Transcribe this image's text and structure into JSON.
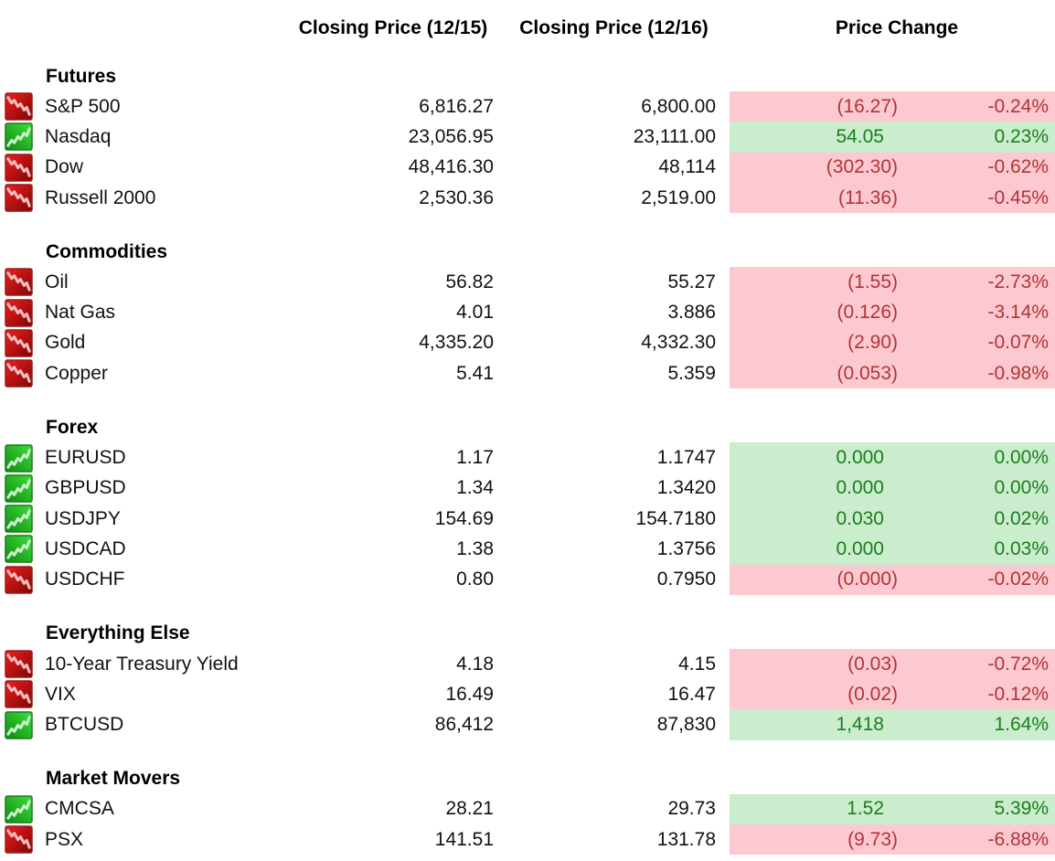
{
  "headers": {
    "closing_1215": "Closing Price (12/15)",
    "closing_1216": "Closing Price (12/16)",
    "price_change": "Price Change"
  },
  "colors": {
    "positive_bg": "#C9EDCD",
    "positive_text": "#1F7D1F",
    "negative_bg": "#FBC9CF",
    "negative_text": "#B23437",
    "icon_down_bright": "#EF1F1F",
    "icon_down_dark": "#7C0505",
    "icon_up_bright": "#3EDE3E",
    "icon_up_dark": "#0F8A0F"
  },
  "sections": [
    {
      "label": "Futures",
      "rows": [
        {
          "symbol": "S&P 500",
          "close_1215": "6,816.27",
          "close_1216": "6,800.00",
          "change": "(16.27)",
          "change_pct": "-0.24%",
          "direction": "down",
          "icon": "down-trend-icon"
        },
        {
          "symbol": "Nasdaq",
          "close_1215": "23,056.95",
          "close_1216": "23,111.00",
          "change": "54.05",
          "change_pct": "0.23%",
          "direction": "up",
          "icon": "up-trend-icon"
        },
        {
          "symbol": "Dow",
          "close_1215": "48,416.30",
          "close_1216": "48,114",
          "change": "(302.30)",
          "change_pct": "-0.62%",
          "direction": "down",
          "icon": "down-trend-icon"
        },
        {
          "symbol": "Russell 2000",
          "close_1215": "2,530.36",
          "close_1216": "2,519.00",
          "change": "(11.36)",
          "change_pct": "-0.45%",
          "direction": "down",
          "icon": "down-trend-icon"
        }
      ]
    },
    {
      "label": "Commodities",
      "rows": [
        {
          "symbol": "Oil",
          "close_1215": "56.82",
          "close_1216": "55.27",
          "change": "(1.55)",
          "change_pct": "-2.73%",
          "direction": "down",
          "icon": "down-trend-icon"
        },
        {
          "symbol": "Nat Gas",
          "close_1215": "4.01",
          "close_1216": "3.886",
          "change": "(0.126)",
          "change_pct": "-3.14%",
          "direction": "down",
          "icon": "down-trend-icon"
        },
        {
          "symbol": "Gold",
          "close_1215": "4,335.20",
          "close_1216": "4,332.30",
          "change": "(2.90)",
          "change_pct": "-0.07%",
          "direction": "down",
          "icon": "down-trend-icon"
        },
        {
          "symbol": "Copper",
          "close_1215": "5.41",
          "close_1216": "5.359",
          "change": "(0.053)",
          "change_pct": "-0.98%",
          "direction": "down",
          "icon": "down-trend-icon"
        }
      ]
    },
    {
      "label": "Forex",
      "rows": [
        {
          "symbol": "EURUSD",
          "close_1215": "1.17",
          "close_1216": "1.1747",
          "change": "0.000",
          "change_pct": "0.00%",
          "direction": "up",
          "icon": "up-trend-icon"
        },
        {
          "symbol": "GBPUSD",
          "close_1215": "1.34",
          "close_1216": "1.3420",
          "change": "0.000",
          "change_pct": "0.00%",
          "direction": "up",
          "icon": "up-trend-icon"
        },
        {
          "symbol": "USDJPY",
          "close_1215": "154.69",
          "close_1216": "154.7180",
          "change": "0.030",
          "change_pct": "0.02%",
          "direction": "up",
          "icon": "up-trend-icon"
        },
        {
          "symbol": "USDCAD",
          "close_1215": "1.38",
          "close_1216": "1.3756",
          "change": "0.000",
          "change_pct": "0.03%",
          "direction": "up",
          "icon": "up-trend-icon"
        },
        {
          "symbol": "USDCHF",
          "close_1215": "0.80",
          "close_1216": "0.7950",
          "change": "(0.000)",
          "change_pct": "-0.02%",
          "direction": "down",
          "icon": "down-trend-icon"
        }
      ]
    },
    {
      "label": "Everything Else",
      "rows": [
        {
          "symbol": "10-Year Treasury Yield",
          "close_1215": "4.18",
          "close_1216": "4.15",
          "change": "(0.03)",
          "change_pct": "-0.72%",
          "direction": "down",
          "icon": "down-trend-icon"
        },
        {
          "symbol": "VIX",
          "close_1215": "16.49",
          "close_1216": "16.47",
          "change": "(0.02)",
          "change_pct": "-0.12%",
          "direction": "down",
          "icon": "down-trend-icon"
        },
        {
          "symbol": "BTCUSD",
          "close_1215": "86,412",
          "close_1216": "87,830",
          "change": "1,418",
          "change_pct": "1.64%",
          "direction": "up",
          "icon": "up-trend-icon"
        }
      ]
    },
    {
      "label": "Market Movers",
      "rows": [
        {
          "symbol": "CMCSA",
          "close_1215": "28.21",
          "close_1216": "29.73",
          "change": "1.52",
          "change_pct": "5.39%",
          "direction": "up",
          "icon": "up-trend-icon"
        },
        {
          "symbol": "PSX",
          "close_1215": "141.51",
          "close_1216": "131.78",
          "change": "(9.73)",
          "change_pct": "-6.88%",
          "direction": "down",
          "icon": "down-trend-icon"
        }
      ]
    }
  ]
}
